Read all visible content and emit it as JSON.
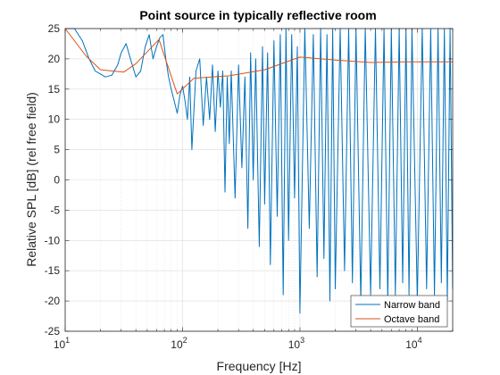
{
  "chart_data": {
    "type": "line",
    "title": "Point source in typically reflective room",
    "xlabel": "Frequency [Hz]",
    "ylabel": "Relative SPL [dB] (rel free field)",
    "x_scale": "log",
    "xlim": [
      10,
      20000
    ],
    "ylim": [
      -25,
      25
    ],
    "grid": true,
    "minor_grid": true,
    "legend_position": "bottom-right",
    "x_ticks": [
      {
        "value": 10,
        "base": "10",
        "exp": "1"
      },
      {
        "value": 100,
        "base": "10",
        "exp": "2"
      },
      {
        "value": 1000,
        "base": "10",
        "exp": "3"
      },
      {
        "value": 10000,
        "base": "10",
        "exp": "4"
      }
    ],
    "y_ticks": [
      -25,
      -20,
      -15,
      -10,
      -5,
      0,
      5,
      10,
      15,
      20,
      25
    ],
    "y_tick_labels": [
      "-25",
      "-20",
      "-15",
      "-10",
      "-5",
      "0",
      "5",
      "10",
      "15",
      "20",
      "25"
    ],
    "series": [
      {
        "name": "Narrow band",
        "color": "#0072BD",
        "x": [
          10,
          12,
          14,
          16,
          18,
          20,
          22,
          25,
          28,
          30,
          33,
          36,
          40,
          44,
          48,
          52,
          56,
          60,
          64,
          68,
          72,
          76,
          80,
          85,
          90,
          95,
          100,
          105,
          110,
          115,
          120,
          130,
          140,
          150,
          160,
          170,
          180,
          190,
          200,
          210,
          220,
          230,
          240,
          250,
          260,
          280,
          300,
          320,
          340,
          360,
          380,
          400,
          420,
          450,
          480,
          500,
          530,
          560,
          600,
          640,
          680,
          720,
          760,
          800,
          850,
          900,
          950,
          1000,
          1100,
          1200,
          1300,
          1400,
          1500,
          1600,
          1700,
          1800,
          1900,
          2000,
          2200,
          2400,
          2600,
          2800,
          3000,
          3300,
          3600,
          4000,
          4400,
          4800,
          5200,
          5600,
          6000,
          6500,
          7000,
          7500,
          8000,
          8500,
          9000,
          10000,
          11000,
          12000,
          13000,
          14000,
          15000,
          16000,
          17000,
          18000,
          19000,
          20000
        ],
        "y": [
          25,
          25,
          23,
          20,
          18,
          17.5,
          17,
          17.3,
          19,
          21,
          22.5,
          20,
          17,
          18,
          22,
          24,
          20,
          22,
          23.5,
          24,
          20,
          17,
          15,
          13,
          11,
          14,
          15.5,
          13,
          10,
          17,
          5,
          18,
          20,
          9,
          17,
          10,
          19,
          8,
          18,
          12,
          18,
          -2,
          17,
          6,
          18,
          -3,
          19,
          2,
          17,
          -8,
          21,
          0,
          20,
          -11,
          22,
          -4,
          21,
          -14,
          23,
          -6,
          24,
          -19,
          25,
          -10,
          24,
          -3,
          22,
          -22,
          25,
          -8,
          24,
          -16,
          25,
          -13,
          24,
          -20,
          25,
          -18,
          25,
          -15,
          25,
          -17,
          25,
          -20,
          25,
          -19,
          25,
          -18,
          25,
          -20,
          25,
          -19,
          25,
          -17,
          25,
          -19,
          25,
          -20,
          25,
          -18,
          25,
          -19,
          25,
          -17,
          25,
          -20,
          25,
          -18
        ]
      },
      {
        "name": "Octave band",
        "color": "#D95319",
        "x": [
          10,
          15,
          20,
          31.5,
          40,
          63,
          70,
          90,
          125,
          250,
          500,
          1000,
          2000,
          4000,
          8000,
          16000,
          20000
        ],
        "y": [
          25,
          20.5,
          18.2,
          17.8,
          19.2,
          23.2,
          20.5,
          14.2,
          16.8,
          17.2,
          18.2,
          20.3,
          19.8,
          19.4,
          19.5,
          19.5,
          19.5
        ]
      }
    ]
  }
}
